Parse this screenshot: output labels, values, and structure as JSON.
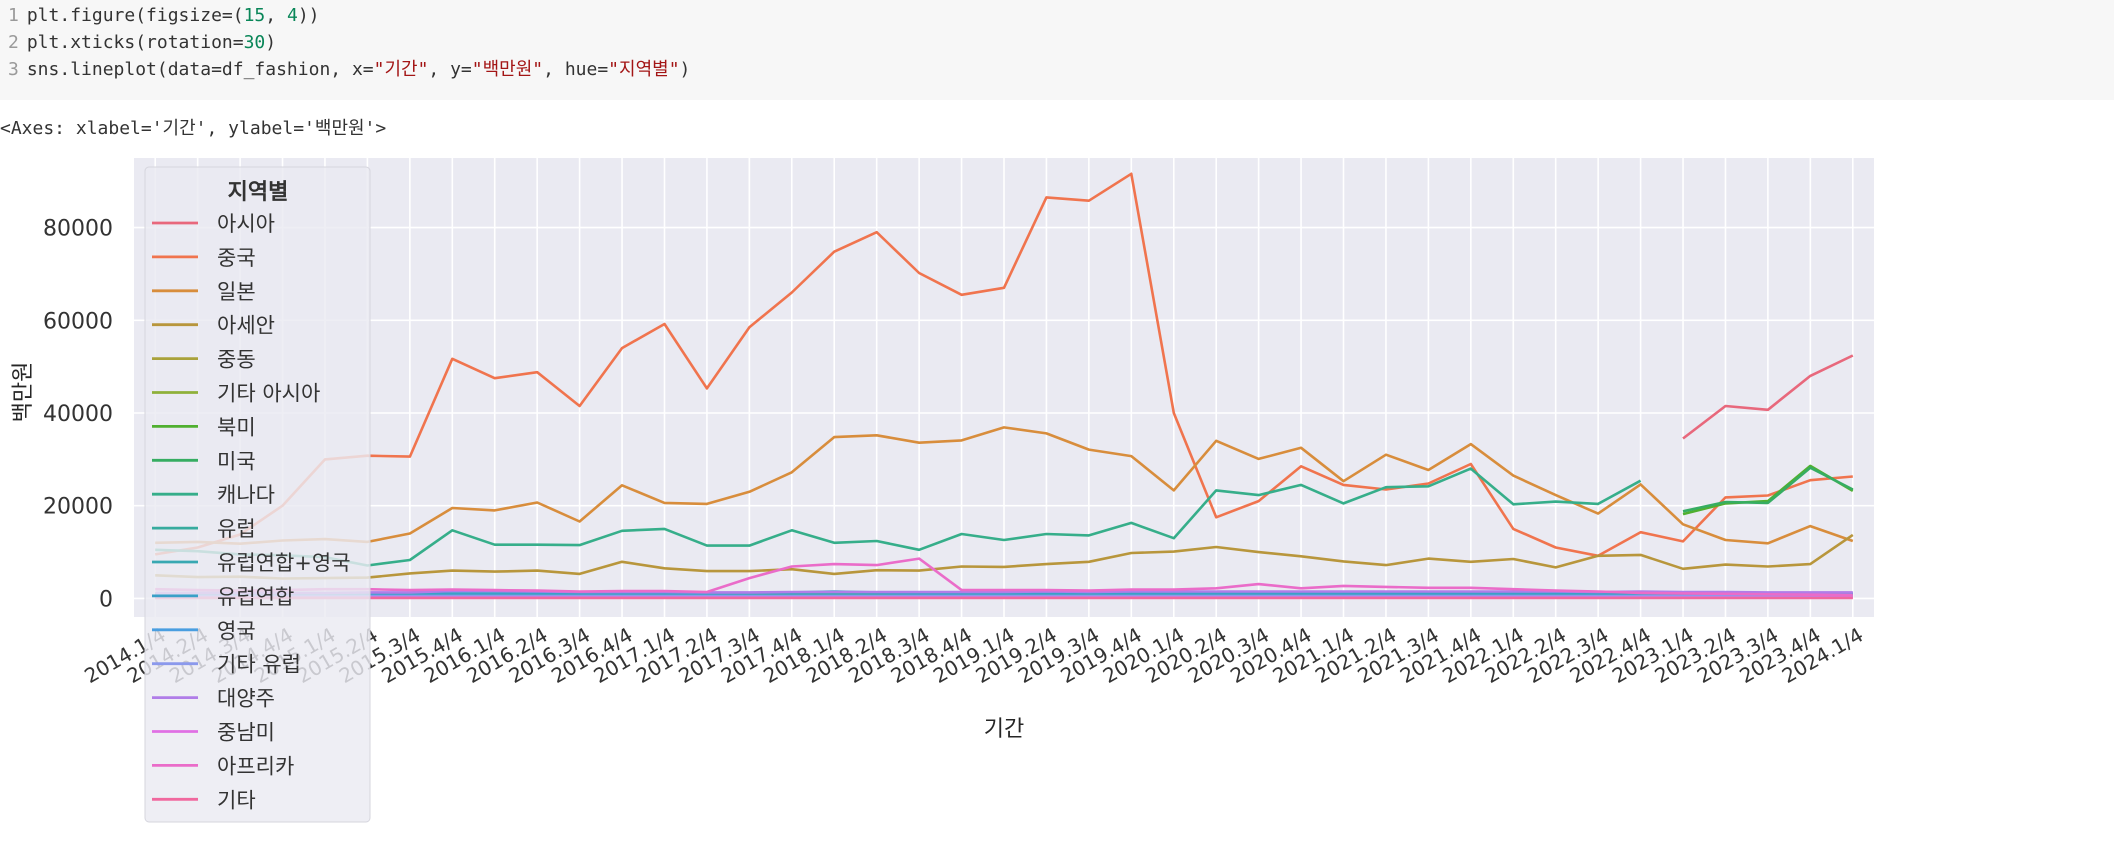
{
  "code": {
    "lines": [
      {
        "num": "1",
        "parts": [
          {
            "t": "fn",
            "v": "plt.figure(figsize=("
          },
          {
            "t": "num",
            "v": "15"
          },
          {
            "t": "fn",
            "v": ", "
          },
          {
            "t": "num",
            "v": "4"
          },
          {
            "t": "fn",
            "v": "))"
          }
        ]
      },
      {
        "num": "2",
        "parts": [
          {
            "t": "fn",
            "v": "plt.xticks(rotation="
          },
          {
            "t": "num",
            "v": "30"
          },
          {
            "t": "fn",
            "v": ")"
          }
        ]
      },
      {
        "num": "3",
        "parts": [
          {
            "t": "fn",
            "v": "sns.lineplot(data=df_fashion, x="
          },
          {
            "t": "str",
            "v": "\"기간\""
          },
          {
            "t": "fn",
            "v": ", y="
          },
          {
            "t": "str",
            "v": "\"백만원\""
          },
          {
            "t": "fn",
            "v": ", hue="
          },
          {
            "t": "str",
            "v": "\"지역별\""
          },
          {
            "t": "fn",
            "v": ")"
          }
        ]
      }
    ]
  },
  "output": {
    "text": "<Axes: xlabel='기간', ylabel='백만원'>"
  },
  "chart_data": {
    "type": "line",
    "xlabel": "기간",
    "ylabel": "백만원",
    "legend_title": "지역별",
    "legend_position": "upper-left",
    "grid": true,
    "ylim": [
      -4000,
      95000
    ],
    "yticks": [
      0,
      20000,
      40000,
      60000,
      80000
    ],
    "x": [
      "2014.1/4",
      "2014.2/4",
      "2014.3/4",
      "2014.4/4",
      "2015.1/4",
      "2015.2/4",
      "2015.3/4",
      "2015.4/4",
      "2016.1/4",
      "2016.2/4",
      "2016.3/4",
      "2016.4/4",
      "2017.1/4",
      "2017.2/4",
      "2017.3/4",
      "2017.4/4",
      "2018.1/4",
      "2018.2/4",
      "2018.3/4",
      "2018.4/4",
      "2019.1/4",
      "2019.2/4",
      "2019.3/4",
      "2019.4/4",
      "2020.1/4",
      "2020.2/4",
      "2020.3/4",
      "2020.4/4",
      "2021.1/4",
      "2021.2/4",
      "2021.3/4",
      "2021.4/4",
      "2022.1/4",
      "2022.2/4",
      "2022.3/4",
      "2022.4/4",
      "2023.1/4",
      "2023.2/4",
      "2023.3/4",
      "2023.4/4",
      "2024.1/4"
    ],
    "series": [
      {
        "name": "아시아",
        "color": "#e8687c",
        "values": [
          null,
          null,
          null,
          null,
          null,
          null,
          null,
          null,
          null,
          null,
          null,
          null,
          null,
          null,
          null,
          null,
          null,
          null,
          null,
          null,
          null,
          null,
          null,
          null,
          null,
          null,
          null,
          null,
          null,
          null,
          null,
          null,
          null,
          null,
          null,
          null,
          34500,
          41500,
          40700,
          48000,
          52400
        ]
      },
      {
        "name": "중국",
        "color": "#f0744e",
        "values": [
          9500,
          11000,
          13800,
          20000,
          30000,
          30800,
          30600,
          51700,
          47500,
          48800,
          41500,
          54000,
          59200,
          45300,
          58500,
          66000,
          74800,
          79000,
          70200,
          65500,
          67000,
          86500,
          85800,
          91600,
          40000,
          17500,
          21000,
          28500,
          24500,
          23500,
          24800,
          29000,
          15000,
          11000,
          9200,
          14300,
          12300,
          21800,
          22200,
          25500,
          26300
        ]
      },
      {
        "name": "일본",
        "color": "#d88d3c",
        "values": [
          12000,
          12200,
          11800,
          12500,
          12800,
          12200,
          14000,
          19500,
          19000,
          20700,
          16600,
          24400,
          20600,
          20400,
          23000,
          27200,
          34800,
          35200,
          33600,
          34100,
          36900,
          35600,
          32100,
          30700,
          23300,
          34000,
          30100,
          32500,
          25300,
          31000,
          27700,
          33300,
          26500,
          22300,
          18300,
          24600,
          16000,
          12600,
          11900,
          15600,
          12400
        ]
      },
      {
        "name": "아세안",
        "color": "#b8963c",
        "values": [
          5000,
          4600,
          4700,
          4300,
          4400,
          4500,
          5400,
          6000,
          5800,
          6000,
          5300,
          7900,
          6500,
          5900,
          5900,
          6300,
          5300,
          6100,
          6000,
          6900,
          6800,
          7400,
          7900,
          9800,
          10100,
          11100,
          10000,
          9100,
          8000,
          7200,
          8600,
          7900,
          8500,
          6700,
          9200,
          9400,
          6400,
          7300,
          6900,
          7400,
          13700
        ]
      },
      {
        "name": "중동",
        "color": "#a9a23b",
        "values": [
          500,
          500,
          500,
          500,
          500,
          500,
          500,
          500,
          500,
          500,
          500,
          500,
          500,
          500,
          500,
          500,
          500,
          500,
          500,
          500,
          500,
          500,
          500,
          500,
          500,
          500,
          500,
          500,
          500,
          500,
          500,
          500,
          500,
          500,
          500,
          500,
          500,
          500,
          500,
          500,
          500
        ]
      },
      {
        "name": "기타 아시아",
        "color": "#8fb03a",
        "values": [
          null,
          null,
          null,
          null,
          null,
          null,
          null,
          null,
          null,
          null,
          null,
          null,
          null,
          null,
          null,
          null,
          null,
          null,
          null,
          null,
          null,
          null,
          null,
          null,
          null,
          null,
          null,
          null,
          null,
          null,
          null,
          null,
          null,
          null,
          null,
          null,
          null,
          null,
          null,
          null,
          null
        ]
      },
      {
        "name": "북미",
        "color": "#50b030",
        "values": [
          null,
          null,
          null,
          null,
          null,
          null,
          null,
          null,
          null,
          null,
          null,
          null,
          null,
          null,
          null,
          null,
          null,
          null,
          null,
          null,
          null,
          null,
          null,
          null,
          null,
          null,
          null,
          null,
          null,
          null,
          null,
          null,
          null,
          null,
          null,
          null,
          18200,
          20500,
          21000,
          28600,
          23200
        ]
      },
      {
        "name": "미국",
        "color": "#36ad62",
        "values": [
          null,
          null,
          null,
          null,
          null,
          null,
          null,
          null,
          null,
          null,
          null,
          null,
          null,
          null,
          null,
          null,
          null,
          null,
          null,
          null,
          null,
          null,
          null,
          null,
          null,
          null,
          null,
          null,
          null,
          null,
          null,
          null,
          null,
          null,
          null,
          null,
          18800,
          20800,
          20600,
          28200,
          23500
        ]
      },
      {
        "name": "캐나다",
        "color": "#36ae8a",
        "values": [
          10500,
          10200,
          9500,
          9300,
          8900,
          7100,
          8300,
          14700,
          11600,
          11600,
          11500,
          14600,
          15000,
          11400,
          11400,
          14700,
          12000,
          12400,
          10500,
          13900,
          12600,
          13900,
          13600,
          16300,
          13000,
          23300,
          22300,
          24500,
          20500,
          24000,
          24200,
          28000,
          20300,
          20900,
          20400,
          25400,
          null,
          null,
          null,
          null,
          null
        ]
      },
      {
        "name": "유럽",
        "color": "#37ab9e",
        "values": [
          800,
          800,
          800,
          800,
          800,
          800,
          800,
          900,
          900,
          900,
          900,
          900,
          900,
          900,
          1000,
          1000,
          1000,
          1000,
          1000,
          1000,
          1000,
          1000,
          1000,
          1000,
          1000,
          1000,
          1000,
          1000,
          1000,
          1000,
          1000,
          1000,
          1000,
          1000,
          1000,
          1000,
          1000,
          1000,
          1000,
          1000,
          1000
        ]
      },
      {
        "name": "유럽연합+영국",
        "color": "#38a8b2",
        "values": [
          1000,
          1000,
          1000,
          1000,
          1000,
          1000,
          1000,
          1000,
          1000,
          1000,
          1000,
          1000,
          1000,
          1000,
          1000,
          1000,
          1000,
          1000,
          1000,
          1000,
          1000,
          1000,
          1000,
          1000,
          1000,
          1000,
          1000,
          1000,
          1000,
          1000,
          1000,
          1000,
          1000,
          1000,
          1000,
          1000,
          1000,
          1000,
          1000,
          1000,
          1000
        ]
      },
      {
        "name": "유럽연합",
        "color": "#3aa0c8",
        "values": [
          1000,
          1000,
          1000,
          1000,
          1000,
          1000,
          1100,
          1100,
          1100,
          1100,
          1100,
          1100,
          1100,
          1100,
          1200,
          1300,
          1500,
          1300,
          1100,
          1100,
          1100,
          1100,
          1100,
          1100,
          1100,
          1100,
          1100,
          1100,
          1100,
          1100,
          1100,
          1100,
          1100,
          1100,
          1100,
          1100,
          1100,
          1100,
          1100,
          1100,
          1100
        ]
      },
      {
        "name": "영국",
        "color": "#4a9ee0",
        "values": [
          300,
          300,
          300,
          300,
          300,
          300,
          300,
          300,
          300,
          300,
          300,
          300,
          300,
          300,
          300,
          300,
          300,
          300,
          300,
          300,
          300,
          300,
          300,
          300,
          300,
          300,
          300,
          300,
          300,
          300,
          300,
          300,
          300,
          300,
          300,
          300,
          300,
          300,
          300,
          300,
          300
        ]
      },
      {
        "name": "기타 유럽",
        "color": "#8b99ec",
        "values": [
          500,
          500,
          500,
          500,
          500,
          500,
          500,
          500,
          500,
          500,
          500,
          500,
          500,
          500,
          500,
          500,
          500,
          500,
          500,
          500,
          500,
          500,
          500,
          500,
          500,
          500,
          500,
          500,
          500,
          500,
          500,
          500,
          500,
          500,
          500,
          500,
          500,
          500,
          500,
          500,
          500
        ]
      },
      {
        "name": "대양주",
        "color": "#b07de8",
        "values": [
          1200,
          1200,
          1200,
          1200,
          1200,
          1300,
          1300,
          1600,
          1600,
          1500,
          1400,
          1400,
          1400,
          1300,
          1300,
          1400,
          1400,
          1400,
          1400,
          1400,
          1400,
          1500,
          1400,
          1500,
          1500,
          1500,
          1500,
          1500,
          1500,
          1500,
          1500,
          1500,
          1500,
          1500,
          1400,
          1500,
          1400,
          1400,
          1300,
          1300,
          1300
        ]
      },
      {
        "name": "중남미",
        "color": "#e070e4",
        "values": [
          200,
          200,
          200,
          200,
          200,
          200,
          200,
          200,
          200,
          200,
          200,
          200,
          200,
          200,
          200,
          200,
          200,
          200,
          200,
          200,
          200,
          200,
          200,
          200,
          200,
          200,
          200,
          200,
          200,
          200,
          200,
          200,
          200,
          200,
          200,
          200,
          200,
          200,
          200,
          200,
          200
        ]
      },
      {
        "name": "아프리카",
        "color": "#ea6cc9",
        "values": [
          2000,
          1800,
          1700,
          1800,
          2000,
          2000,
          1800,
          1900,
          1800,
          1700,
          1500,
          1600,
          1600,
          1400,
          4400,
          6900,
          7400,
          7200,
          8600,
          1800,
          1800,
          1800,
          1700,
          1900,
          1900,
          2200,
          3100,
          2200,
          2700,
          2500,
          2300,
          2300,
          2000,
          1700,
          1500,
          1200,
          1100,
          1000,
          900,
          800,
          700
        ]
      },
      {
        "name": "기타",
        "color": "#f0689e",
        "values": [
          100,
          100,
          100,
          100,
          100,
          100,
          100,
          100,
          100,
          100,
          100,
          100,
          100,
          100,
          100,
          100,
          100,
          100,
          100,
          100,
          100,
          100,
          100,
          100,
          100,
          100,
          100,
          100,
          100,
          100,
          100,
          100,
          100,
          100,
          100,
          100,
          100,
          100,
          100,
          100,
          100
        ]
      }
    ]
  }
}
